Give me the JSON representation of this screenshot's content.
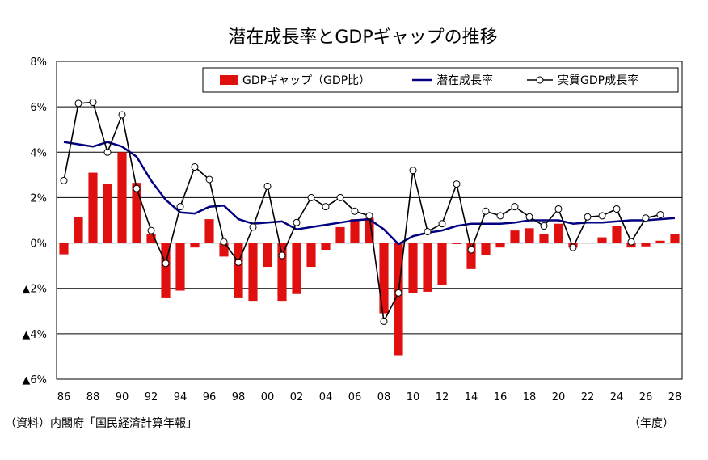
{
  "chart_data": {
    "type": "bar",
    "title": "潜在成長率とGDPギャップの推移",
    "source_note": "（資料）内閣府「国民経済計算年報」",
    "x_unit_label": "（年度）",
    "ylim": [
      -6,
      8
    ],
    "y_ticks": [
      {
        "value": 8,
        "label": "8%"
      },
      {
        "value": 6,
        "label": "6%"
      },
      {
        "value": 4,
        "label": "4%"
      },
      {
        "value": 2,
        "label": "2%"
      },
      {
        "value": 0,
        "label": "0%"
      },
      {
        "value": -2,
        "label": "▲2%"
      },
      {
        "value": -4,
        "label": "▲4%"
      },
      {
        "value": -6,
        "label": "▲6%"
      }
    ],
    "grid": true,
    "legend_position": "top-right",
    "x_tick_labels": [
      "86",
      "88",
      "90",
      "92",
      "94",
      "96",
      "98",
      "00",
      "02",
      "04",
      "06",
      "08",
      "10",
      "12",
      "14",
      "16",
      "18",
      "20",
      "22",
      "24",
      "26",
      "28"
    ],
    "categories": [
      "86",
      "87",
      "88",
      "89",
      "90",
      "91",
      "92",
      "93",
      "94",
      "95",
      "96",
      "97",
      "98",
      "99",
      "00",
      "01",
      "02",
      "03",
      "04",
      "05",
      "06",
      "07",
      "08",
      "09",
      "10",
      "11",
      "12",
      "13",
      "14",
      "15",
      "16",
      "17",
      "18",
      "19",
      "20",
      "21",
      "22",
      "23",
      "24",
      "25",
      "26",
      "27",
      "28"
    ],
    "series": [
      {
        "name": "GDPギャップ（GDP比）",
        "kind": "bar",
        "color": "#e01010",
        "values": [
          -0.5,
          1.15,
          3.1,
          2.6,
          4.0,
          2.65,
          0.4,
          -2.4,
          -2.1,
          -0.2,
          1.05,
          -0.6,
          -2.4,
          -2.55,
          -1.05,
          -2.55,
          -2.25,
          -1.05,
          -0.3,
          0.7,
          1.05,
          1.1,
          -3.1,
          -4.95,
          -2.2,
          -2.15,
          -1.85,
          -0.05,
          -1.15,
          -0.55,
          -0.2,
          0.55,
          0.65,
          0.4,
          0.85,
          -0.2,
          0.0,
          0.25,
          0.75,
          -0.2,
          -0.15,
          0.1,
          0.4
        ]
      },
      {
        "name": "潜在成長率",
        "kind": "line",
        "color": "#000080",
        "values": [
          4.45,
          4.35,
          4.25,
          4.45,
          4.25,
          3.8,
          2.75,
          1.9,
          1.35,
          1.3,
          1.6,
          1.65,
          1.05,
          0.85,
          0.9,
          0.95,
          0.6,
          0.7,
          0.8,
          0.9,
          1.0,
          1.05,
          0.6,
          -0.05,
          0.3,
          0.45,
          0.55,
          0.75,
          0.85,
          0.85,
          0.85,
          0.9,
          1.0,
          1.0,
          1.0,
          0.85,
          0.9,
          0.9,
          0.95,
          1.0,
          1.0,
          1.05,
          1.1
        ]
      },
      {
        "name": "実質GDP成長率",
        "kind": "line-marker",
        "color": "#000000",
        "values": [
          2.75,
          6.15,
          6.2,
          4.0,
          5.65,
          2.4,
          0.55,
          -0.9,
          1.6,
          3.35,
          2.8,
          0.05,
          -0.85,
          0.7,
          2.5,
          -0.55,
          0.9,
          2.0,
          1.6,
          2.0,
          1.4,
          1.2,
          -3.45,
          -2.2,
          3.2,
          0.5,
          0.85,
          2.6,
          -0.3,
          1.4,
          1.2,
          1.6,
          1.15,
          0.75,
          1.5,
          -0.2,
          1.15,
          1.2,
          1.5,
          0.05,
          1.1,
          1.25,
          null
        ]
      }
    ]
  }
}
